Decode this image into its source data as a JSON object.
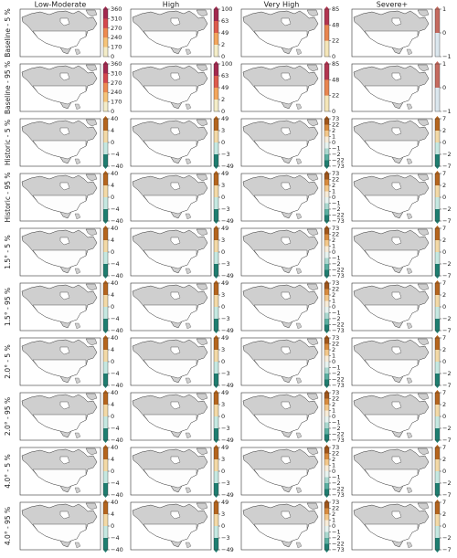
{
  "columns": [
    "Low-Moderate",
    "High",
    "Very High",
    "Severe+"
  ],
  "baseline": {
    "extend": "max",
    "rows": [
      "Baseline - 5 %",
      "Baseline - 95 %"
    ],
    "colorbars": [
      {
        "ticks": [
          360,
          310,
          270,
          240,
          170,
          0
        ],
        "colors": [
          "#a3284f",
          "#d4474d",
          "#ee8a4f",
          "#f6c478",
          "#f4edc8"
        ]
      },
      {
        "ticks": [
          100,
          63,
          49,
          2,
          0
        ],
        "colors": [
          "#a3284f",
          "#dd5b4c",
          "#f3a65c",
          "#f4edc8"
        ]
      },
      {
        "ticks": [
          85,
          48,
          22,
          0
        ],
        "colors": [
          "#b23450",
          "#e8854f",
          "#f5e6b8"
        ]
      },
      {
        "ticks": [
          1,
          0,
          {
            "value": -1,
            "label": "−1"
          }
        ],
        "colors": [
          "#c56a5e",
          "#dbe7ee"
        ]
      }
    ]
  },
  "change": {
    "extend": "both",
    "rows": [
      "Historic - 5 %",
      "Historic - 95 %",
      "1.5° - 5 %",
      "1.5° - 95 %",
      "2.0° - 5 %",
      "2.0° - 95 %",
      "4.0° - 5 %",
      "4.0° - 95 %"
    ],
    "colorbars": [
      {
        "ticks": [
          40,
          4,
          0,
          {
            "value": -4,
            "label": "−4"
          },
          {
            "value": -40,
            "label": "−40"
          }
        ],
        "colors": [
          "#b5651d",
          "#f3d9a6",
          "#c5e8e1",
          "#1e7e70"
        ]
      },
      {
        "ticks": [
          49,
          3,
          0,
          {
            "value": -3,
            "label": "−3"
          },
          {
            "value": -49,
            "label": "−49"
          }
        ],
        "colors": [
          "#b5651d",
          "#f3d9a6",
          "#c5e8e1",
          "#1e7e70"
        ]
      },
      {
        "ticks": [
          73,
          22,
          2,
          1,
          0,
          {
            "value": -1,
            "label": "−1"
          },
          {
            "value": -2,
            "label": "−2"
          },
          {
            "value": -22,
            "label": "−22"
          },
          {
            "value": -73,
            "label": "−73"
          }
        ],
        "colors": [
          "#a0561a",
          "#d78b3e",
          "#f3c78a",
          "#f8ecd8",
          "#e7f3f0",
          "#a9d8cf",
          "#5aaea0",
          "#1e7e70"
        ]
      },
      {
        "ticks": [
          7,
          2,
          0,
          {
            "value": -2,
            "label": "−2"
          },
          {
            "value": -7,
            "label": "−7"
          }
        ],
        "colors": [
          "#b5651d",
          "#f3d9a6",
          "#c5e8e1",
          "#1e7e70"
        ]
      }
    ]
  }
}
